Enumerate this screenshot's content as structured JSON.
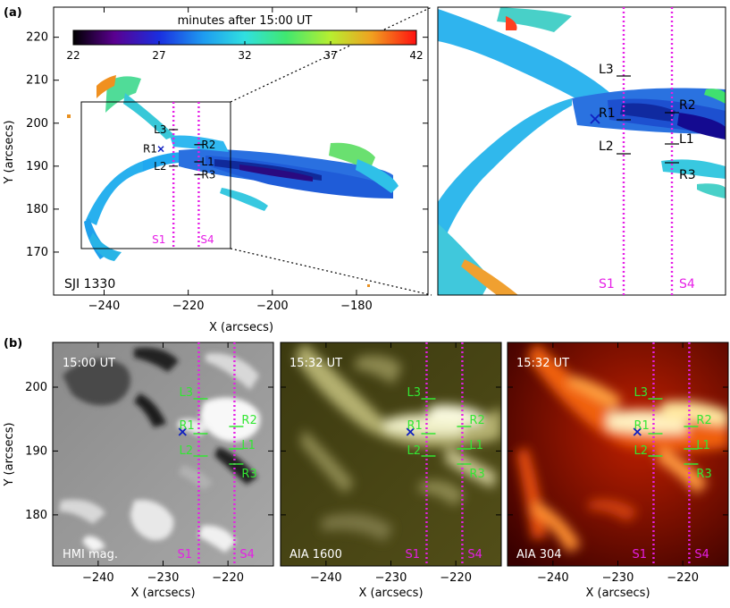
{
  "panel_a": {
    "label": "(a)",
    "colorbar": {
      "title": "minutes after 15:00 UT",
      "tick_labels": [
        "22",
        "27",
        "32",
        "37",
        "42"
      ],
      "min": 22,
      "max": 42
    },
    "main": {
      "instrument_label": "SJI 1330",
      "xlabel": "X (arcsecs)",
      "ylabel": "Y (arcsecs)",
      "x_ticks": [
        "-240",
        "-220",
        "-200",
        "-180"
      ],
      "y_ticks": [
        "170",
        "180",
        "190",
        "200",
        "210",
        "220"
      ],
      "xlim": [
        -252,
        -163
      ],
      "ylim": [
        160,
        227
      ],
      "slit_labels": [
        "S1",
        "S4"
      ],
      "slit_x": [
        -223.5,
        -217.5
      ],
      "points": [
        {
          "name": "L3",
          "x": -223.5,
          "y": 198.5
        },
        {
          "name": "R1",
          "x": -226.5,
          "y": 194
        },
        {
          "name": "R2",
          "x": -217.5,
          "y": 195
        },
        {
          "name": "L2",
          "x": -223.5,
          "y": 190
        },
        {
          "name": "L1",
          "x": -217.5,
          "y": 191
        },
        {
          "name": "R3",
          "x": -217.5,
          "y": 188
        }
      ]
    },
    "zoom": {
      "slit_labels": [
        "S1",
        "S4"
      ],
      "labels": [
        "L3",
        "R1",
        "R2",
        "L2",
        "L1",
        "R3"
      ]
    }
  },
  "panel_b": {
    "label": "(b)",
    "xlabel": "X (arcsecs)",
    "ylabel": "Y (arcsecs)",
    "x_ticks": [
      "-240",
      "-230",
      "-220"
    ],
    "y_ticks": [
      "180",
      "190",
      "200"
    ],
    "xlim": [
      -247,
      -213
    ],
    "ylim": [
      172,
      207
    ],
    "slit_x": [
      -224.5,
      -219
    ],
    "subpanels": [
      {
        "time": "15:00 UT",
        "instrument": "HMI mag.",
        "labels": [
          "L3",
          "R1",
          "R2",
          "L2",
          "L1",
          "R3"
        ],
        "slits": [
          "S1",
          "S4"
        ]
      },
      {
        "time": "15:32 UT",
        "instrument": "AIA 1600",
        "labels": [
          "L3",
          "R1",
          "R2",
          "L2",
          "L1",
          "R3"
        ],
        "slits": [
          "S1",
          "S4"
        ]
      },
      {
        "time": "15:32 UT",
        "instrument": "AIA 304",
        "labels": [
          "L3",
          "R1",
          "R2",
          "L2",
          "L1",
          "R3"
        ],
        "slits": [
          "S1",
          "S4"
        ]
      }
    ]
  },
  "colors": {
    "slit": "#e61ee6",
    "marker_green": "#33e633",
    "cross": "#1020c0"
  }
}
